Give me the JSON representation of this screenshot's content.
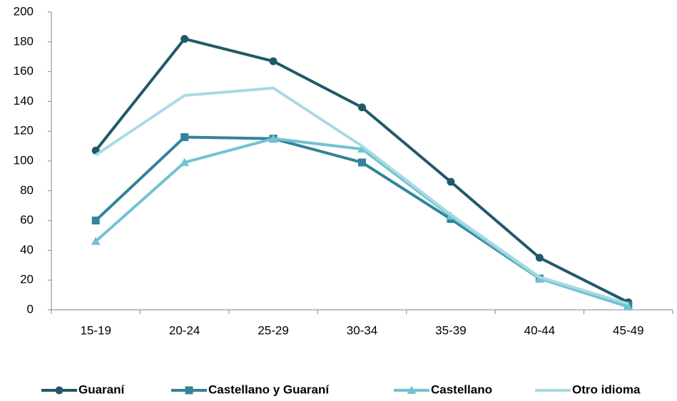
{
  "chart_data": {
    "type": "line",
    "categories": [
      "15-19",
      "20-24",
      "25-29",
      "30-34",
      "35-39",
      "40-44",
      "45-49"
    ],
    "series": [
      {
        "name": "Guaraní",
        "color": "#215968",
        "marker": "circle",
        "values": [
          107,
          182,
          167,
          136,
          86,
          35,
          5
        ]
      },
      {
        "name": "Castellano y Guaraní",
        "color": "#31849b",
        "marker": "square",
        "values": [
          60,
          116,
          115,
          99,
          61,
          21,
          3
        ]
      },
      {
        "name": "Castellano",
        "color": "#72c2d2",
        "marker": "triangle",
        "values": [
          46,
          99,
          115,
          108,
          63,
          21,
          2
        ]
      },
      {
        "name": "Otro idioma",
        "color": "#a8dae3",
        "marker": "none",
        "values": [
          104,
          144,
          149,
          110,
          64,
          22,
          4
        ]
      }
    ],
    "ylim": [
      0,
      200
    ],
    "yticks": [
      0,
      20,
      40,
      60,
      80,
      100,
      120,
      140,
      160,
      180,
      200
    ],
    "grid": false,
    "legend": "bottom"
  }
}
